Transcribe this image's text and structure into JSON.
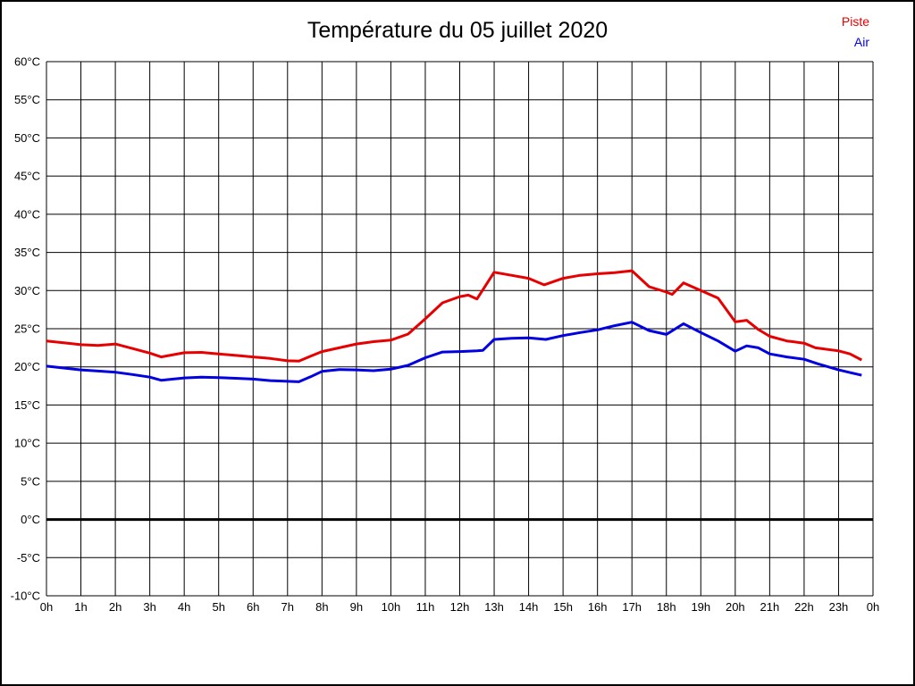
{
  "header": {
    "title": "Température du 05 juillet 2020"
  },
  "legend": {
    "position": "top-right",
    "items": [
      {
        "label": "Piste",
        "color": "#e60000"
      },
      {
        "label": "Air",
        "color": "#0000e0"
      }
    ]
  },
  "chart_data": {
    "type": "line",
    "title": "Température du 05 juillet 2020",
    "xlabel": "",
    "ylabel": "",
    "grid": true,
    "grid_color": "#000000",
    "background": "#ffffff",
    "xlim": [
      0,
      24
    ],
    "ylim": [
      -10,
      60
    ],
    "zero_line": {
      "value": 0,
      "width": 3
    },
    "x_ticks": [
      {
        "v": 0,
        "label": "0h"
      },
      {
        "v": 1,
        "label": "1h"
      },
      {
        "v": 2,
        "label": "2h"
      },
      {
        "v": 3,
        "label": "3h"
      },
      {
        "v": 4,
        "label": "4h"
      },
      {
        "v": 5,
        "label": "5h"
      },
      {
        "v": 6,
        "label": "6h"
      },
      {
        "v": 7,
        "label": "7h"
      },
      {
        "v": 8,
        "label": "8h"
      },
      {
        "v": 9,
        "label": "9h"
      },
      {
        "v": 10,
        "label": "10h"
      },
      {
        "v": 11,
        "label": "11h"
      },
      {
        "v": 12,
        "label": "12h"
      },
      {
        "v": 13,
        "label": "13h"
      },
      {
        "v": 14,
        "label": "14h"
      },
      {
        "v": 15,
        "label": "15h"
      },
      {
        "v": 16,
        "label": "16h"
      },
      {
        "v": 17,
        "label": "17h"
      },
      {
        "v": 18,
        "label": "18h"
      },
      {
        "v": 19,
        "label": "19h"
      },
      {
        "v": 20,
        "label": "20h"
      },
      {
        "v": 21,
        "label": "21h"
      },
      {
        "v": 22,
        "label": "22h"
      },
      {
        "v": 23,
        "label": "23h"
      },
      {
        "v": 24,
        "label": "0h"
      }
    ],
    "y_ticks": [
      {
        "v": 60,
        "label": "60°C"
      },
      {
        "v": 55,
        "label": "55°C"
      },
      {
        "v": 50,
        "label": "50°C"
      },
      {
        "v": 45,
        "label": "45°C"
      },
      {
        "v": 40,
        "label": "40°C"
      },
      {
        "v": 35,
        "label": "35°C"
      },
      {
        "v": 30,
        "label": "30°C"
      },
      {
        "v": 25,
        "label": "25°C"
      },
      {
        "v": 20,
        "label": "20°C"
      },
      {
        "v": 15,
        "label": "15°C"
      },
      {
        "v": 10,
        "label": "10°C"
      },
      {
        "v": 5,
        "label": "5°C"
      },
      {
        "v": 0,
        "label": "0°C"
      },
      {
        "v": -5,
        "label": "-5°C"
      },
      {
        "v": -10,
        "label": "-10°C"
      }
    ],
    "series": [
      {
        "name": "Piste",
        "color": "#e60000",
        "points": [
          [
            0,
            23.4
          ],
          [
            0.5,
            23.15
          ],
          [
            1,
            22.9
          ],
          [
            1.5,
            22.8
          ],
          [
            2,
            23.0
          ],
          [
            2.5,
            22.4
          ],
          [
            3,
            21.8
          ],
          [
            3.33,
            21.3
          ],
          [
            4,
            21.85
          ],
          [
            4.5,
            21.9
          ],
          [
            5,
            21.7
          ],
          [
            5.5,
            21.5
          ],
          [
            6,
            21.3
          ],
          [
            6.5,
            21.1
          ],
          [
            7,
            20.8
          ],
          [
            7.33,
            20.75
          ],
          [
            7.67,
            21.4
          ],
          [
            8,
            22.0
          ],
          [
            8.5,
            22.5
          ],
          [
            9,
            23.0
          ],
          [
            9.5,
            23.3
          ],
          [
            10,
            23.5
          ],
          [
            10.5,
            24.3
          ],
          [
            11,
            26.3
          ],
          [
            11.5,
            28.4
          ],
          [
            12,
            29.2
          ],
          [
            12.25,
            29.4
          ],
          [
            12.5,
            28.9
          ],
          [
            13,
            32.4
          ],
          [
            13.5,
            32.0
          ],
          [
            14,
            31.6
          ],
          [
            14.45,
            30.75
          ],
          [
            15,
            31.6
          ],
          [
            15.5,
            32.0
          ],
          [
            16,
            32.2
          ],
          [
            16.5,
            32.35
          ],
          [
            17,
            32.6
          ],
          [
            17.5,
            30.5
          ],
          [
            18,
            29.8
          ],
          [
            18.17,
            29.5
          ],
          [
            18.5,
            31.0
          ],
          [
            19,
            30.0
          ],
          [
            19.5,
            29.0
          ],
          [
            20,
            25.9
          ],
          [
            20.33,
            26.1
          ],
          [
            20.67,
            24.9
          ],
          [
            21,
            24.0
          ],
          [
            21.5,
            23.4
          ],
          [
            22,
            23.1
          ],
          [
            22.33,
            22.5
          ],
          [
            23,
            22.1
          ],
          [
            23.33,
            21.7
          ],
          [
            23.67,
            20.9
          ]
        ]
      },
      {
        "name": "Air",
        "color": "#0000e0",
        "points": [
          [
            0,
            20.1
          ],
          [
            0.5,
            19.85
          ],
          [
            1,
            19.6
          ],
          [
            1.5,
            19.45
          ],
          [
            2,
            19.3
          ],
          [
            2.5,
            19.0
          ],
          [
            3,
            18.65
          ],
          [
            3.33,
            18.25
          ],
          [
            4,
            18.55
          ],
          [
            4.5,
            18.65
          ],
          [
            5,
            18.6
          ],
          [
            5.5,
            18.5
          ],
          [
            6,
            18.4
          ],
          [
            6.5,
            18.2
          ],
          [
            7,
            18.1
          ],
          [
            7.33,
            18.05
          ],
          [
            7.67,
            18.7
          ],
          [
            8,
            19.4
          ],
          [
            8.5,
            19.65
          ],
          [
            9,
            19.6
          ],
          [
            9.5,
            19.5
          ],
          [
            10,
            19.7
          ],
          [
            10.5,
            20.2
          ],
          [
            11,
            21.2
          ],
          [
            11.5,
            21.95
          ],
          [
            12,
            22.0
          ],
          [
            12.5,
            22.1
          ],
          [
            12.67,
            22.15
          ],
          [
            13,
            23.6
          ],
          [
            13.5,
            23.75
          ],
          [
            14,
            23.8
          ],
          [
            14.5,
            23.6
          ],
          [
            15,
            24.1
          ],
          [
            15.5,
            24.5
          ],
          [
            16,
            24.85
          ],
          [
            16.5,
            25.4
          ],
          [
            17,
            25.85
          ],
          [
            17.5,
            24.75
          ],
          [
            18,
            24.25
          ],
          [
            18.5,
            25.65
          ],
          [
            19,
            24.5
          ],
          [
            19.5,
            23.4
          ],
          [
            20,
            22.05
          ],
          [
            20.33,
            22.75
          ],
          [
            20.67,
            22.5
          ],
          [
            21,
            21.7
          ],
          [
            21.5,
            21.3
          ],
          [
            22,
            21.0
          ],
          [
            22.4,
            20.4
          ],
          [
            23,
            19.6
          ],
          [
            23.33,
            19.25
          ],
          [
            23.67,
            18.9
          ]
        ]
      }
    ]
  }
}
